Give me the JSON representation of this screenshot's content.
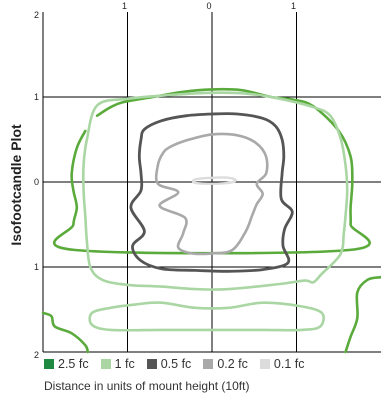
{
  "chart_data": {
    "type": "contour",
    "title": "",
    "ylabel": "Isofootcandle Plot",
    "xlabel": "Distance in units of mount height (10ft)",
    "x_ticks": [
      "1",
      "0",
      "1"
    ],
    "y_ticks": [
      "2",
      "1",
      "0",
      "1",
      "2"
    ],
    "xlim": [
      -2,
      2
    ],
    "ylim": [
      -2,
      2
    ],
    "grid": true,
    "legend_position": "bottom",
    "series": [
      {
        "name": "2.5 fc",
        "color": "#5aab3c",
        "points": [
          [
            -1.36,
            0.78
          ],
          [
            -1.2,
            0.88
          ],
          [
            -1.05,
            0.94
          ],
          [
            -0.7,
            1.0
          ],
          [
            -0.35,
            1.06
          ],
          [
            0,
            1.09
          ],
          [
            0.35,
            1.08
          ],
          [
            0.7,
            1.0
          ],
          [
            0.96,
            0.97
          ],
          [
            1.2,
            0.89
          ],
          [
            1.5,
            0.6
          ],
          [
            1.64,
            0.3
          ],
          [
            1.66,
            0
          ],
          [
            1.64,
            -0.3
          ],
          [
            1.64,
            -0.5
          ],
          [
            1.62,
            -0.8
          ],
          [
            -1.62,
            -0.8
          ],
          [
            -1.64,
            -0.5
          ],
          [
            -1.6,
            -0.3
          ],
          [
            -1.64,
            -0.1
          ],
          [
            -1.66,
            0.1
          ],
          [
            -1.6,
            0.4
          ],
          [
            -1.5,
            0.6
          ]
        ],
        "extra_points": [
          [
            [
              -2.0,
              -1.54
            ],
            [
              -1.9,
              -1.58
            ],
            [
              -1.86,
              -1.7
            ],
            [
              -1.66,
              -1.78
            ],
            [
              -1.5,
              -1.92
            ],
            [
              -1.47,
              -2.0
            ]
          ],
          [
            [
              2.0,
              -1.12
            ],
            [
              1.84,
              -1.15
            ],
            [
              1.72,
              -1.3
            ],
            [
              1.72,
              -1.6
            ],
            [
              1.64,
              -1.82
            ],
            [
              1.58,
              -2.0
            ]
          ]
        ]
      },
      {
        "name": "1 fc",
        "color": "#a9d6a3",
        "points": [
          [
            -1.36,
            0.9
          ],
          [
            -1.0,
            0.98
          ],
          [
            -0.4,
            1.03
          ],
          [
            0,
            1.05
          ],
          [
            0.4,
            1.04
          ],
          [
            0.8,
            0.98
          ],
          [
            1.2,
            0.88
          ],
          [
            1.4,
            0.78
          ],
          [
            1.52,
            0.52
          ],
          [
            1.58,
            0.2
          ],
          [
            1.6,
            -0.1
          ],
          [
            1.58,
            -0.4
          ],
          [
            1.56,
            -0.6
          ],
          [
            1.52,
            -0.85
          ],
          [
            1.3,
            -1.08
          ],
          [
            1.2,
            -1.18
          ],
          [
            1.1,
            -1.16
          ],
          [
            0.8,
            -1.2
          ],
          [
            0.2,
            -1.26
          ],
          [
            -0.2,
            -1.26
          ],
          [
            -0.6,
            -1.23
          ],
          [
            -1.0,
            -1.21
          ],
          [
            -1.3,
            -1.15
          ],
          [
            -1.44,
            -1.0
          ],
          [
            -1.48,
            -0.7
          ],
          [
            -1.5,
            -0.4
          ],
          [
            -1.52,
            -0.1
          ],
          [
            -1.52,
            0.2
          ],
          [
            -1.48,
            0.5
          ]
        ],
        "extra_points": [
          [
            [
              1.04,
              -1.46
            ],
            [
              1.3,
              -1.54
            ],
            [
              1.28,
              -1.7
            ],
            [
              1.06,
              -1.74
            ],
            [
              0.6,
              -1.74
            ],
            [
              0,
              -1.74
            ],
            [
              -0.6,
              -1.74
            ],
            [
              -1.2,
              -1.74
            ],
            [
              -1.42,
              -1.68
            ],
            [
              -1.42,
              -1.54
            ],
            [
              -1.2,
              -1.48
            ],
            [
              -0.9,
              -1.44
            ],
            [
              -0.6,
              -1.42
            ],
            [
              -0.2,
              -1.48
            ],
            [
              0.2,
              -1.48
            ],
            [
              0.6,
              -1.42
            ]
          ]
        ]
      },
      {
        "name": "0.5 fc",
        "color": "#555555",
        "points": [
          [
            -0.8,
            0.62
          ],
          [
            -0.6,
            0.72
          ],
          [
            -0.3,
            0.78
          ],
          [
            0,
            0.8
          ],
          [
            0.3,
            0.8
          ],
          [
            0.6,
            0.75
          ],
          [
            0.75,
            0.66
          ],
          [
            0.83,
            0.5
          ],
          [
            0.85,
            0.3
          ],
          [
            0.83,
            0.1
          ],
          [
            0.82,
            -0.2
          ],
          [
            0.95,
            -0.35
          ],
          [
            0.86,
            -0.55
          ],
          [
            0.84,
            -0.75
          ],
          [
            0.9,
            -0.95
          ],
          [
            0.6,
            -1.03
          ],
          [
            0.2,
            -1.05
          ],
          [
            -0.2,
            -1.04
          ],
          [
            -0.6,
            -1.02
          ],
          [
            -0.85,
            -0.92
          ],
          [
            -0.94,
            -0.75
          ],
          [
            -0.8,
            -0.58
          ],
          [
            -0.96,
            -0.3
          ],
          [
            -0.84,
            -0.1
          ],
          [
            -0.84,
            0.1
          ],
          [
            -0.86,
            0.3
          ],
          [
            -0.84,
            0.5
          ]
        ],
        "extra_points": []
      },
      {
        "name": "0.2 fc",
        "color": "#a9a9a9",
        "points": [
          [
            -0.5,
            0.41
          ],
          [
            -0.3,
            0.49
          ],
          [
            0,
            0.56
          ],
          [
            0.3,
            0.55
          ],
          [
            0.52,
            0.46
          ],
          [
            0.64,
            0.3
          ],
          [
            0.64,
            0.1
          ],
          [
            0.53,
            -0.02
          ],
          [
            0.6,
            -0.14
          ],
          [
            0.53,
            -0.26
          ],
          [
            0.48,
            -0.38
          ],
          [
            0.4,
            -0.58
          ],
          [
            0.24,
            -0.8
          ],
          [
            0,
            -0.84
          ],
          [
            -0.24,
            -0.84
          ],
          [
            -0.4,
            -0.77
          ],
          [
            -0.34,
            -0.6
          ],
          [
            -0.32,
            -0.42
          ],
          [
            -0.62,
            -0.28
          ],
          [
            -0.4,
            -0.12
          ],
          [
            -0.64,
            -0.02
          ],
          [
            -0.64,
            0.2
          ],
          [
            -0.58,
            0.34
          ]
        ],
        "extra_points": []
      },
      {
        "name": "0.1 fc",
        "color": "#dcdcdc",
        "points": [
          [
            -0.2,
            0.03
          ],
          [
            0,
            0.05
          ],
          [
            0.2,
            0.05
          ],
          [
            0.28,
            0.02
          ],
          [
            0.2,
            -0.01
          ],
          [
            0,
            -0.02
          ],
          [
            -0.2,
            -0.01
          ]
        ],
        "extra_points": []
      }
    ]
  },
  "legend": [
    {
      "label": "2.5 fc",
      "color": "#1f8a3f"
    },
    {
      "label": "1 fc",
      "color": "#a9d6a3"
    },
    {
      "label": "0.5 fc",
      "color": "#555555"
    },
    {
      "label": "0.2 fc",
      "color": "#a9a9a9"
    },
    {
      "label": "0.1 fc",
      "color": "#dcdcdc"
    }
  ],
  "caption": "Distance in units of mount height (10ft)"
}
